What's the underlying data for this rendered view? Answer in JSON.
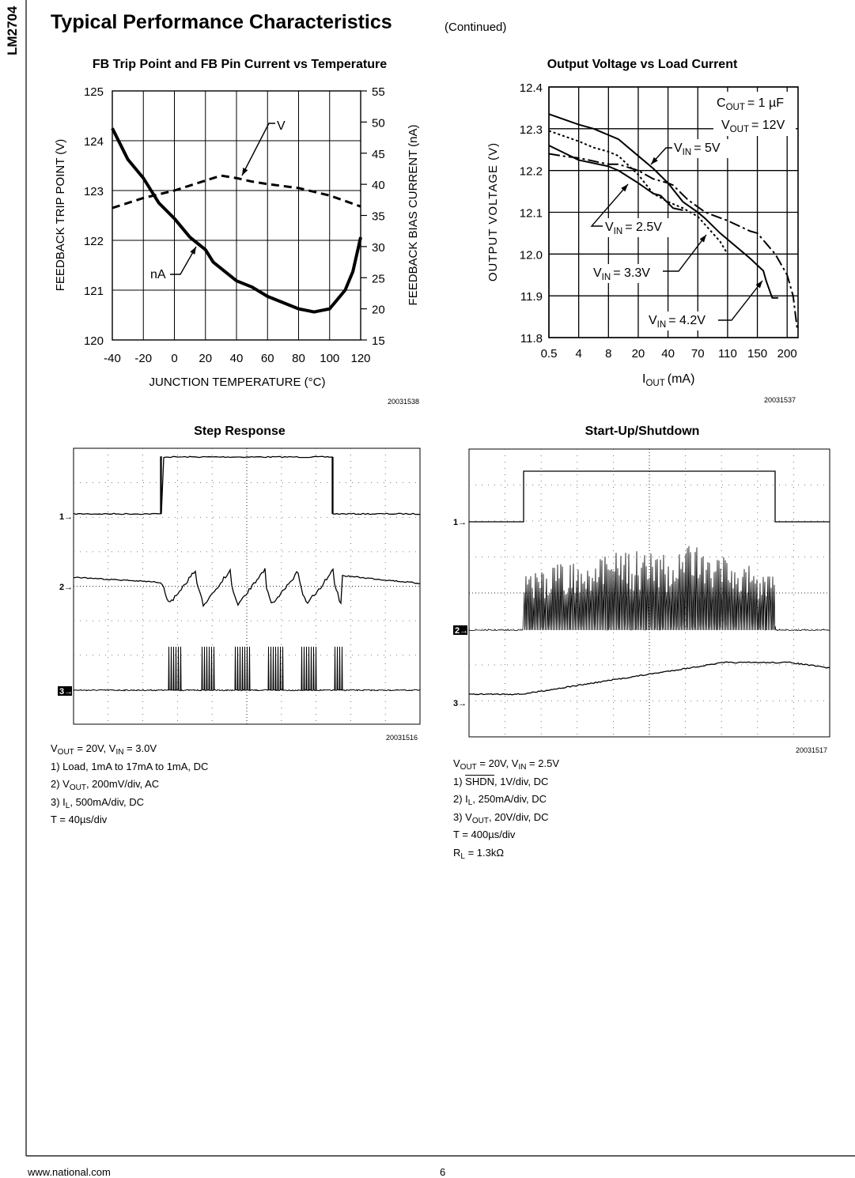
{
  "header": {
    "part_number": "LM2704",
    "title": "Typical Performance Characteristics",
    "subtitle": "(Continued)"
  },
  "footer": {
    "website": "www.national.com",
    "page_number": "6"
  },
  "figures": {
    "fb_trip": {
      "title": "FB Trip Point and FB Pin Current vs Temperature",
      "figure_id": "20031538"
    },
    "vout_load": {
      "title": "Output Voltage vs Load Current",
      "figure_id": "20031537"
    },
    "step": {
      "title": "Step Response",
      "figure_id": "20031516",
      "channel_markers": [
        "1",
        "2",
        "3"
      ],
      "caption": [
        [
          {
            "t": "V"
          },
          {
            "t": "OUT",
            "sub": true
          },
          {
            "t": " = 20V, V"
          },
          {
            "t": "IN",
            "sub": true
          },
          {
            "t": " = 3.0V"
          }
        ],
        [
          {
            "t": "1) Load, 1mA to 17mA to 1mA, DC"
          }
        ],
        [
          {
            "t": "2) V"
          },
          {
            "t": "OUT",
            "sub": true
          },
          {
            "t": ", 200mV/div, AC"
          }
        ],
        [
          {
            "t": "3) I"
          },
          {
            "t": "L",
            "sub": true
          },
          {
            "t": ", 500mA/div, DC"
          }
        ],
        [
          {
            "t": "T = 40µs/div"
          }
        ]
      ]
    },
    "startup": {
      "title": "Start-Up/Shutdown",
      "figure_id": "20031517",
      "channel_markers": [
        "1",
        "2",
        "3"
      ],
      "caption": [
        [
          {
            "t": "V"
          },
          {
            "t": "OUT",
            "sub": true
          },
          {
            "t": " = 20V, V"
          },
          {
            "t": "IN",
            "sub": true
          },
          {
            "t": " = 2.5V"
          }
        ],
        [
          {
            "t": "1) "
          },
          {
            "t": "SHDN",
            "over": true
          },
          {
            "t": ", 1V/div, DC"
          }
        ],
        [
          {
            "t": "2) I"
          },
          {
            "t": "L",
            "sub": true
          },
          {
            "t": ", 250mA/div, DC"
          }
        ],
        [
          {
            "t": "3) V"
          },
          {
            "t": "OUT",
            "sub": true
          },
          {
            "t": ", 20V/div, DC"
          }
        ],
        [
          {
            "t": "T = 400µs/div"
          }
        ],
        [
          {
            "t": "R"
          },
          {
            "t": "L",
            "sub": true
          },
          {
            "t": " = 1.3kΩ"
          }
        ]
      ]
    }
  },
  "chart_data": [
    {
      "type": "line",
      "title": "FB Trip Point and FB Pin Current vs Temperature",
      "xlabel": "JUNCTION TEMPERATURE (°C)",
      "ylabel": "FEEDBACK TRIP POINT (V)",
      "y2label": "FEEDBACK BIAS CURRENT (nA)",
      "xlim": [
        -40,
        120
      ],
      "ylim": [
        120,
        125
      ],
      "y2lim": [
        15,
        55
      ],
      "xticks": [
        "-40",
        "-20",
        "0",
        "20",
        "40",
        "60",
        "80",
        "100",
        "120"
      ],
      "yticks": [
        "120",
        "121",
        "122",
        "123",
        "124",
        "125"
      ],
      "y2ticks": [
        "15",
        "20",
        "25",
        "30",
        "35",
        "40",
        "45",
        "50",
        "55"
      ],
      "grid": true,
      "series": [
        {
          "name": "V",
          "axis": "left",
          "style": "dashed",
          "x": [
            -40,
            -20,
            0,
            20,
            30,
            40,
            50,
            60,
            80,
            100,
            120
          ],
          "y": [
            122.65,
            122.85,
            123.0,
            123.2,
            123.3,
            123.25,
            123.18,
            123.13,
            123.05,
            122.9,
            122.68
          ]
        },
        {
          "name": "nA",
          "axis": "right",
          "style": "solid",
          "x": [
            -40,
            -35,
            -30,
            -20,
            -15,
            -10,
            0,
            10,
            20,
            25,
            40,
            50,
            60,
            70,
            80,
            90,
            100,
            110,
            115,
            120
          ],
          "y": [
            49,
            46.5,
            44,
            41,
            39,
            37,
            34.5,
            31.5,
            29.5,
            27.5,
            24.5,
            23.5,
            22,
            21,
            20,
            19.5,
            20,
            23,
            26,
            31.5
          ]
        }
      ]
    },
    {
      "type": "line",
      "title": "Output Voltage vs Load Current",
      "xlabel": "I_OUT (mA)",
      "ylabel": "OUTPUT VOLTAGE (V)",
      "ylim": [
        11.8,
        12.4
      ],
      "xticks": [
        0.5,
        4,
        8,
        20,
        40,
        70,
        110,
        150,
        200
      ],
      "yticks": [
        "11.8",
        "11.9",
        "12.0",
        "12.1",
        "12.2",
        "12.3",
        "12.4"
      ],
      "grid": true,
      "annotations": {
        "cout": "C_OUT = 1 µF",
        "vout": "V_OUT = 12V"
      },
      "series": [
        {
          "name": "VIN = 4.2V",
          "style": "solid",
          "x": [
            0.5,
            4,
            6,
            8,
            12,
            20,
            30,
            40,
            55,
            70,
            80,
            100,
            120,
            140,
            160,
            165,
            175,
            185
          ],
          "y": [
            12.335,
            12.31,
            12.3,
            12.285,
            12.275,
            12.235,
            12.205,
            12.17,
            12.125,
            12.1,
            12.085,
            12.05,
            12.02,
            11.99,
            11.96,
            11.935,
            11.895,
            11.895
          ]
        },
        {
          "name": "VIN = 3.3V",
          "style": "dotted",
          "x": [
            0.5,
            4,
            6,
            8,
            12,
            20,
            30,
            40,
            55,
            70,
            90,
            100,
            110
          ],
          "y": [
            12.295,
            12.27,
            12.255,
            12.245,
            12.235,
            12.19,
            12.145,
            12.125,
            12.11,
            12.09,
            12.05,
            12.03,
            12.0
          ]
        },
        {
          "name": "VIN = 2.5V",
          "style": "solid",
          "x": [
            0.5,
            2,
            4,
            8,
            12,
            20,
            30,
            35,
            45,
            55
          ],
          "y": [
            12.26,
            12.245,
            12.225,
            12.21,
            12.2,
            12.17,
            12.145,
            12.14,
            12.11,
            12.105
          ]
        },
        {
          "name": "VIN = 5V",
          "style": "dashdot",
          "x": [
            0.5,
            2,
            4,
            8,
            12,
            20,
            30,
            40,
            45,
            60,
            80,
            110,
            140,
            150,
            180,
            200,
            210,
            217
          ],
          "y": [
            12.24,
            12.235,
            12.23,
            12.215,
            12.215,
            12.2,
            12.18,
            12.17,
            12.165,
            12.13,
            12.1,
            12.08,
            12.055,
            12.05,
            12.0,
            11.95,
            11.9,
            11.82
          ]
        }
      ]
    }
  ],
  "labels": {
    "vin5": "= 5V",
    "vin25": "= 2.5V",
    "vin33": "= 3.3V",
    "vin42": "= 4.2V",
    "v": "V",
    "in": "IN",
    "out": "OUT",
    "c": "C",
    "i": "I",
    "cout_val": "= 1 µF",
    "vout_val": "= 12V",
    "ma": "(mA)",
    "v_series": "V",
    "na_series": "nA"
  },
  "colors": {
    "ink": "#000000",
    "background": "#ffffff"
  }
}
